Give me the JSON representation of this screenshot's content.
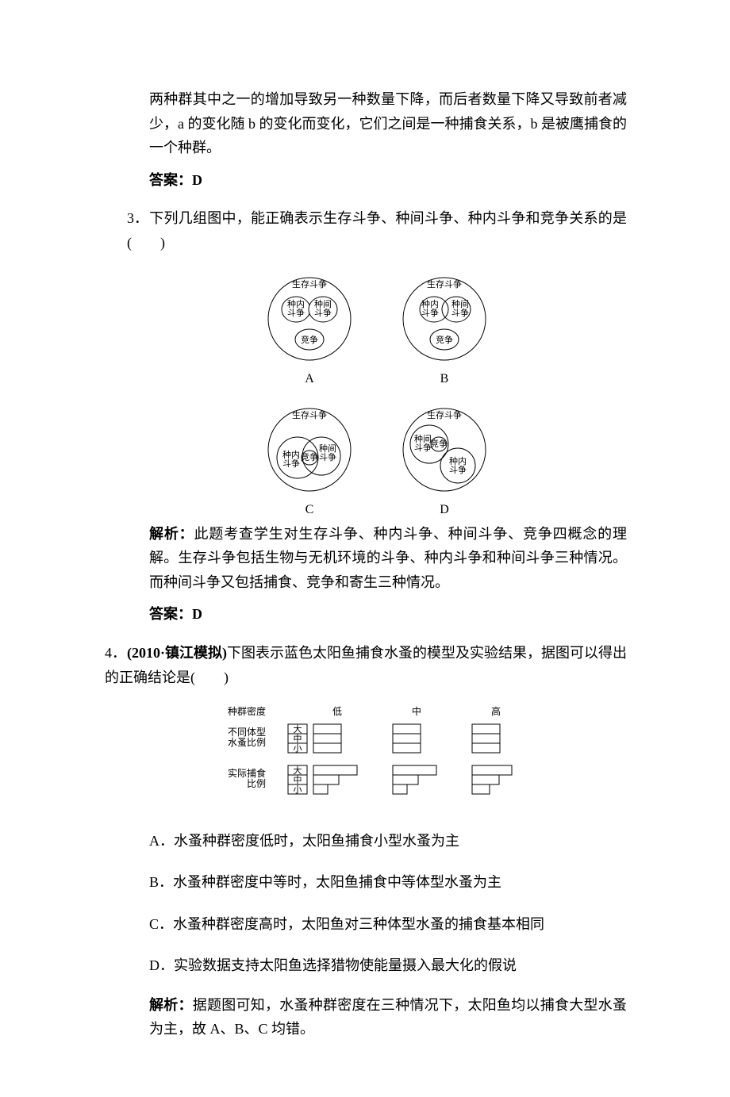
{
  "q2": {
    "explain": "两种群其中之一的增加导致另一种数量下降，而后者数量下降又导致前者减少，a 的变化随 b 的变化而变化，它们之间是一种捕食关系，b 是被鹰捕食的一个种群。",
    "answer_label": "答案：D"
  },
  "q3": {
    "number": "3．",
    "stem": "下列几组图中，能正确表示生存斗争、种间斗争、种内斗争和竞争关系的是(　　)",
    "outer_label": "生存斗争",
    "labels": {
      "zhongnei": "种内\n斗争",
      "zhongjian": "种间\n斗争",
      "jingzheng": "竞争"
    },
    "opts": [
      "A",
      "B",
      "C",
      "D"
    ],
    "explain_label": "解析：",
    "explain": "此题考查学生对生存斗争、种内斗争、种间斗争、竞争四概念的理解。生存斗争包括生物与无机环境的斗争、种内斗争和种间斗争三种情况。而种间斗争又包括捕食、竞争和寄生三种情况。",
    "answer_label": "答案：D",
    "colors": {
      "stroke": "#000000",
      "fill": "#ffffff"
    }
  },
  "q4": {
    "number": "4．",
    "source": "(2010·镇江模拟)",
    "stem": "下图表示蓝色太阳鱼捕食水蚤的模型及实验结果，据图可以得出的正确结论是(　　)",
    "chart": {
      "row_labels": {
        "density": "种群密度",
        "proportion": "不同体型\n水蚤比例",
        "predation": "实际捕食\n比例"
      },
      "density_levels": [
        "低",
        "中",
        "高"
      ],
      "size_labels": [
        "大",
        "中",
        "小"
      ],
      "proportion": {
        "low": [
          35,
          35,
          35
        ],
        "mid": [
          35,
          35,
          35
        ],
        "high": [
          35,
          35,
          35
        ]
      },
      "predation": {
        "low": [
          55,
          32,
          18
        ],
        "mid": [
          55,
          32,
          18
        ],
        "high": [
          50,
          34,
          22
        ]
      },
      "colors": {
        "stroke": "#000000",
        "fill": "#ffffff",
        "text": "#000000"
      }
    },
    "options": {
      "A": "A．水蚤种群密度低时，太阳鱼捕食小型水蚤为主",
      "B": "B．水蚤种群密度中等时，太阳鱼捕食中等体型水蚤为主",
      "C": "C．水蚤种群密度高时，太阳鱼对三种体型水蚤的捕食基本相同",
      "D": "D．实验数据支持太阳鱼选择猎物使能量摄入最大化的假说"
    },
    "explain_label": "解析：",
    "explain": "据题图可知，水蚤种群密度在三种情况下，太阳鱼均以捕食大型水蚤为主，故 A、B、C 均错。"
  }
}
